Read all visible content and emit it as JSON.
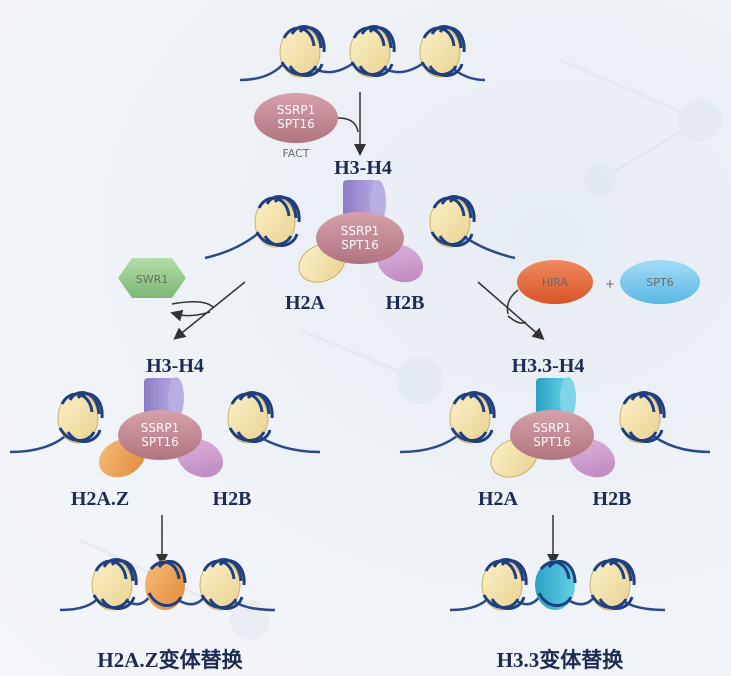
{
  "diagram": {
    "fact_complex": {
      "line1": "SSRP1",
      "line2": "SPT16",
      "caption": "FACT"
    },
    "swr1": "SWR1",
    "hira": "HIRA",
    "plus": "+",
    "spt6": "SPT6",
    "labels": {
      "top_h3h4": "H3-H4",
      "top_h2a": "H2A",
      "top_h2b": "H2B",
      "left_h3h4": "H3-H4",
      "left_h2az": "H2A.Z",
      "left_h2b": "H2B",
      "right_h33h4": "H3.3-H4",
      "right_h2a": "H2A",
      "right_h2b": "H2B"
    },
    "captions": {
      "left": "H2A.Z变体替换",
      "right": "H3.3变体替换"
    }
  },
  "colors": {
    "dna": "#2a4a8a",
    "nucleosome": "#f3e2a6",
    "fact": "#c98f99",
    "h3h4": "#9d8ed0",
    "h33h4": "#3fb6d4",
    "h2a": "#f2dc9a",
    "h2b": "#cf9fd0",
    "h2az": "#f0a050",
    "swr1": "#8fc48a",
    "hira": "#e86a3c",
    "spt6": "#7ec8ee"
  }
}
